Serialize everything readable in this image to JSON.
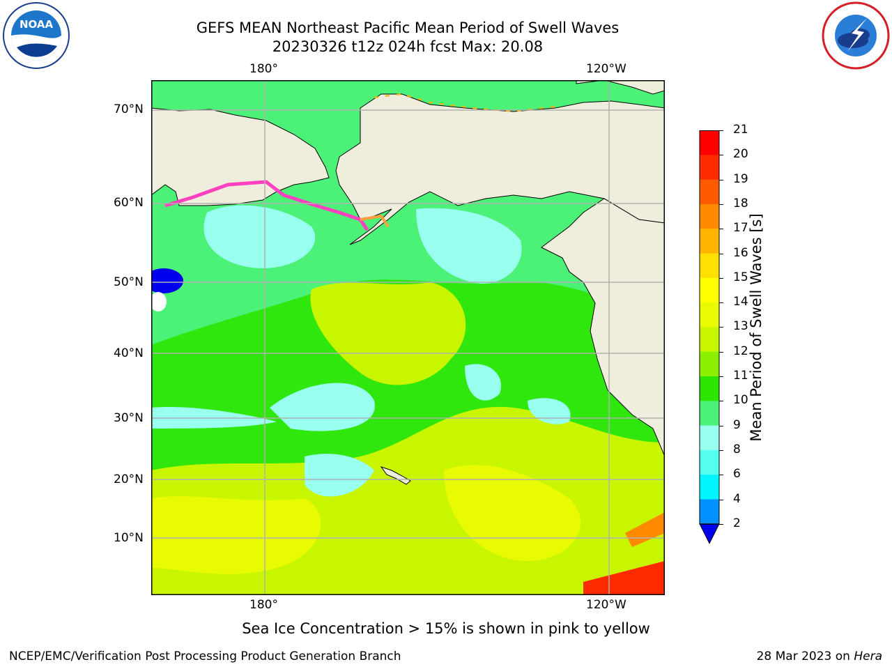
{
  "title": {
    "line1": "GEFS MEAN Northeast Pacific Mean Period of Swell Waves",
    "line2": "20230326 t12z 024h fcst   Max: 20.08"
  },
  "map": {
    "lon_labels_top": [
      "180°",
      "120°W"
    ],
    "lon_labels_bottom": [
      "180°",
      "120°W"
    ],
    "lat_labels": [
      "70°N",
      "60°N",
      "50°N",
      "40°N",
      "30°N",
      "20°N",
      "10°N"
    ],
    "colors": {
      "land": "#efeedc",
      "ocean_base": "#4cf277",
      "frame": "#000000",
      "grid": "#b0b0b0"
    }
  },
  "colorbar": {
    "title": "Mean Period of Swell Waves [s]",
    "ticks": [
      "21",
      "20",
      "19",
      "18",
      "17",
      "16",
      "15",
      "14",
      "13",
      "12",
      "11",
      "10",
      "9",
      "8",
      "6",
      "4",
      "2"
    ],
    "colors": [
      "#ff0000",
      "#ff2a00",
      "#ff5a00",
      "#ff8a00",
      "#ffb400",
      "#ffe000",
      "#ffff00",
      "#e8fb00",
      "#c8f500",
      "#8cf000",
      "#2ce600",
      "#4cf277",
      "#99ffee",
      "#55fff0",
      "#00f6ff",
      "#0090ff",
      "#0000ee"
    ]
  },
  "note": "Sea Ice Concentration > 15% is shown in pink to yellow",
  "footer": {
    "left": "NCEP/EMC/Verification Post Processing Product Generation Branch",
    "right_date": "28 Mar 2023 on ",
    "right_machine": "Hera"
  },
  "logos": {
    "left": "noaa-logo",
    "right": "national-weather-service-logo"
  }
}
